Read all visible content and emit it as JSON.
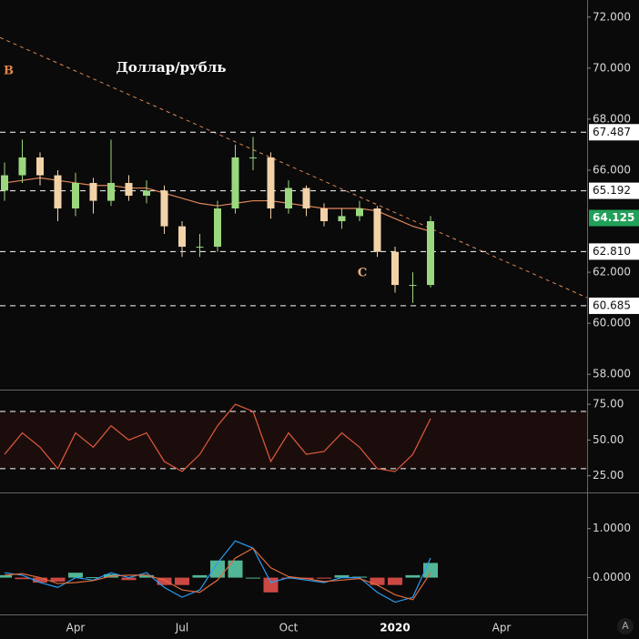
{
  "chart_data": [
    {
      "type": "candlestick",
      "title": "Доллар/рубль",
      "annotations": [
        "B",
        "C"
      ],
      "categories": [
        null,
        null,
        null,
        null,
        "Apr",
        null,
        null,
        null,
        null,
        null,
        "Jul",
        null,
        null,
        null,
        null,
        null,
        "Oct",
        null,
        null,
        null,
        null,
        null,
        "2020",
        null,
        null,
        null,
        null,
        null,
        "Apr",
        null,
        null,
        null,
        null
      ],
      "open": [
        65.2,
        65.8,
        66.5,
        65.8,
        64.5,
        65.5,
        64.8,
        65.5,
        65.0,
        65.2,
        63.8,
        63.0,
        63.0,
        64.5,
        66.5,
        66.5,
        64.5,
        65.3,
        64.5,
        64.0,
        64.2,
        64.5,
        62.8,
        61.5,
        61.5,
        null,
        null,
        null,
        null,
        null,
        null,
        null,
        null
      ],
      "high": [
        66.3,
        67.2,
        66.7,
        66.0,
        65.9,
        65.7,
        67.2,
        65.8,
        65.6,
        65.4,
        64.0,
        63.5,
        64.8,
        67.0,
        67.3,
        66.7,
        65.6,
        65.4,
        64.7,
        64.5,
        64.8,
        64.6,
        63.0,
        62.0,
        64.2,
        null,
        null,
        null,
        null,
        null,
        null,
        null,
        null
      ],
      "low": [
        64.8,
        65.5,
        65.4,
        64.0,
        64.2,
        64.3,
        64.6,
        64.8,
        64.7,
        63.5,
        62.6,
        62.6,
        62.8,
        64.3,
        66.0,
        64.1,
        64.3,
        64.2,
        63.8,
        63.7,
        64.0,
        62.6,
        61.2,
        60.8,
        61.4,
        null,
        null,
        null,
        null,
        null,
        null,
        null,
        null
      ],
      "close": [
        65.8,
        66.5,
        65.8,
        64.5,
        65.5,
        64.8,
        65.5,
        65.0,
        65.2,
        63.8,
        63.0,
        63.0,
        64.5,
        66.5,
        66.5,
        64.5,
        65.3,
        64.5,
        64.0,
        64.2,
        64.5,
        62.8,
        61.5,
        61.5,
        64.0,
        null,
        null,
        null,
        null,
        null,
        null,
        null,
        null
      ],
      "ma": [
        65.5,
        65.6,
        65.7,
        65.6,
        65.5,
        65.4,
        65.4,
        65.3,
        65.3,
        65.1,
        64.9,
        64.7,
        64.6,
        64.7,
        64.8,
        64.8,
        64.7,
        64.6,
        64.5,
        64.5,
        64.5,
        64.4,
        64.1,
        63.8,
        63.6,
        null,
        null,
        null,
        null,
        null,
        null,
        null,
        null
      ],
      "up_color": "#9bd77f",
      "down_color": "#f2d2a8",
      "ma_color": "#e0865a",
      "trendline": [
        71.2,
        61.0
      ],
      "levels": [
        {
          "value": 67.487,
          "label": "67.487"
        },
        {
          "value": 65.192,
          "label": "65.192"
        },
        {
          "value": 62.81,
          "label": "62.810"
        },
        {
          "value": 60.685,
          "label": "60.685"
        }
      ],
      "last_price": {
        "value": 64.125,
        "label": "64.125"
      },
      "ylim": [
        57.4,
        72.67
      ],
      "yticks": [
        {
          "value": 72,
          "label": "72.000"
        },
        {
          "value": 70,
          "label": "70.000"
        },
        {
          "value": 68,
          "label": "68.000"
        },
        {
          "value": 66,
          "label": "66.000"
        },
        {
          "value": 62,
          "label": "62.000"
        },
        {
          "value": 60,
          "label": "60.000"
        },
        {
          "value": 58,
          "label": "58.000"
        }
      ]
    },
    {
      "type": "rsi",
      "values": [
        40,
        55,
        45,
        30,
        55,
        45,
        60,
        50,
        55,
        35,
        28,
        40,
        60,
        75,
        70,
        35,
        55,
        40,
        42,
        55,
        45,
        30,
        28,
        40,
        65,
        null,
        null,
        null,
        null,
        null,
        null,
        null,
        null
      ],
      "color": "#e05a3a",
      "band": [
        30,
        70
      ],
      "ylim": [
        14,
        84
      ],
      "yticks": [
        {
          "value": 75,
          "label": "75.00"
        },
        {
          "value": 50,
          "label": "50.00"
        },
        {
          "value": 25,
          "label": "25.00"
        }
      ]
    },
    {
      "type": "macd",
      "series": [
        {
          "color": "#2a9df4",
          "values": [
            0.1,
            0.05,
            -0.1,
            -0.2,
            0.0,
            -0.05,
            0.1,
            0.0,
            0.1,
            -0.2,
            -0.4,
            -0.25,
            0.3,
            0.75,
            0.6,
            -0.1,
            0.0,
            -0.05,
            -0.1,
            0.0,
            0.0,
            -0.3,
            -0.5,
            -0.4,
            0.4,
            null,
            null,
            null,
            null,
            null,
            null,
            null,
            null
          ]
        },
        {
          "color": "#e06b3a",
          "values": [
            0.05,
            0.08,
            0.0,
            -0.12,
            -0.1,
            -0.06,
            0.03,
            0.05,
            0.05,
            -0.05,
            -0.25,
            -0.3,
            -0.05,
            0.4,
            0.6,
            0.2,
            0.02,
            -0.02,
            -0.08,
            -0.05,
            -0.02,
            -0.15,
            -0.35,
            -0.45,
            0.1,
            null,
            null,
            null,
            null,
            null,
            null,
            null,
            null
          ]
        }
      ],
      "histogram": [
        0.05,
        -0.03,
        -0.1,
        -0.08,
        0.1,
        0.01,
        0.07,
        -0.05,
        0.05,
        -0.15,
        -0.15,
        0.05,
        0.35,
        0.35,
        0.0,
        -0.3,
        -0.02,
        -0.03,
        -0.02,
        0.05,
        0.02,
        -0.15,
        -0.15,
        0.05,
        0.3,
        null,
        null,
        null,
        null,
        null,
        null,
        null,
        null
      ],
      "up_color": "#5fd3b0",
      "down_color": "#ef5350",
      "ylim": [
        -0.75,
        1.7
      ],
      "yticks": [
        {
          "value": 1,
          "label": "1.0000"
        },
        {
          "value": 0,
          "label": "0.0000"
        }
      ]
    }
  ],
  "auto_button": "A"
}
